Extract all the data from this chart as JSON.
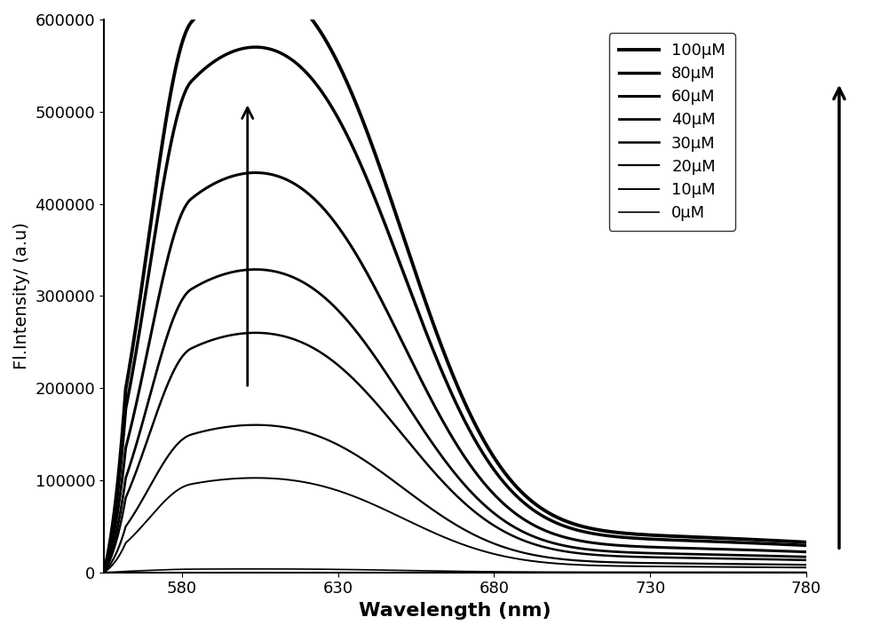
{
  "concentrations": [
    0,
    10,
    20,
    30,
    40,
    60,
    80,
    100
  ],
  "peak_wavelength": 583,
  "peak_values": [
    3000,
    82000,
    128000,
    208000,
    263000,
    347000,
    456000,
    511000
  ],
  "shoulder_wavelength": 632,
  "shoulder_fractions": [
    0.55,
    0.55,
    0.55,
    0.55,
    0.55,
    0.55,
    0.55,
    0.55
  ],
  "wavelength_start": 555,
  "wavelength_end": 780,
  "xlabel": "Wavelength (nm)",
  "ylabel": "Fl.Intensity/ (a.u)",
  "xlim": [
    555,
    780
  ],
  "ylim": [
    0,
    600000
  ],
  "yticks": [
    0,
    100000,
    200000,
    300000,
    400000,
    500000,
    600000
  ],
  "xticks": [
    580,
    630,
    680,
    730,
    780
  ],
  "legend_labels": [
    "100μM",
    "80μM",
    "60μM",
    "40μM",
    "30μM",
    "20μM",
    "10μM",
    "0μM"
  ],
  "line_widths": [
    2.8,
    2.5,
    2.2,
    2.0,
    1.8,
    1.6,
    1.4,
    1.2
  ],
  "background_color": "#ffffff",
  "xlabel_fontsize": 16,
  "ylabel_fontsize": 14,
  "tick_fontsize": 13,
  "legend_fontsize": 13
}
